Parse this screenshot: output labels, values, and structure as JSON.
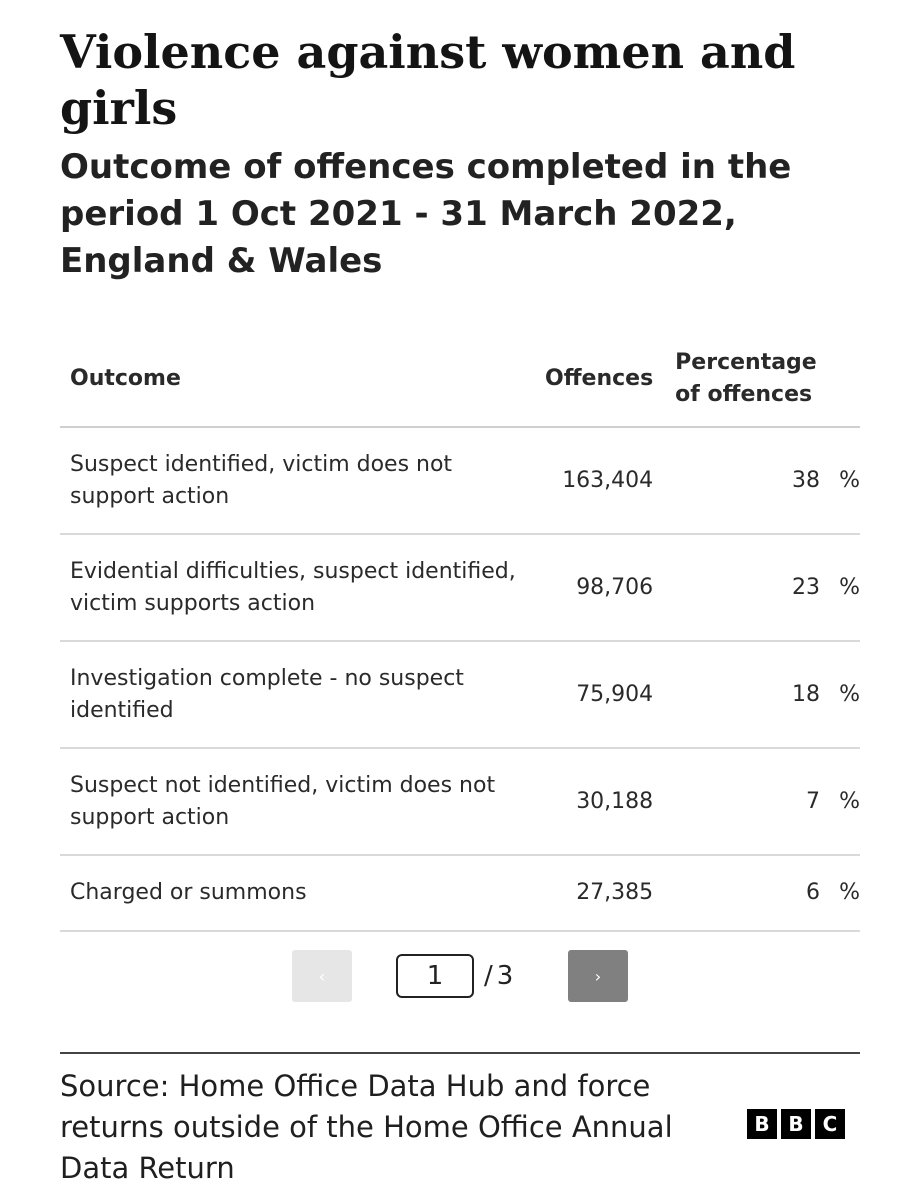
{
  "chart_data": {
    "type": "table",
    "title": "Violence against women and girls",
    "subtitle": "Outcome of offences completed in the period 1 Oct 2021 - 31 March 2022, England & Wales",
    "columns": [
      "Outcome",
      "Offences",
      "Percentage of offences"
    ],
    "rows": [
      {
        "outcome": "Suspect identified, victim does not support action",
        "offences": "163,404",
        "percentage": "38",
        "unit": "%"
      },
      {
        "outcome": "Evidential difficulties, suspect identified, victim supports action",
        "offences": "98,706",
        "percentage": "23",
        "unit": "%"
      },
      {
        "outcome": "Investigation complete - no suspect identified",
        "offences": "75,904",
        "percentage": "18",
        "unit": "%"
      },
      {
        "outcome": "Suspect not identified, victim does not support action",
        "offences": "30,188",
        "percentage": "7",
        "unit": "%"
      },
      {
        "outcome": "Charged or summons",
        "offences": "27,385",
        "percentage": "6",
        "unit": "%"
      }
    ],
    "values": [
      163404,
      98706,
      75904,
      30188,
      27385
    ],
    "percentages": [
      38,
      23,
      18,
      7,
      6
    ]
  },
  "pagination": {
    "prev_label": "‹",
    "next_label": "›",
    "current_page": "1",
    "separator": "/",
    "total_pages": "3"
  },
  "footer": {
    "source": "Source: Home Office Data Hub and force returns outside of the Home Office Annual Data Return",
    "logo_letters": [
      "B",
      "B",
      "C"
    ]
  }
}
